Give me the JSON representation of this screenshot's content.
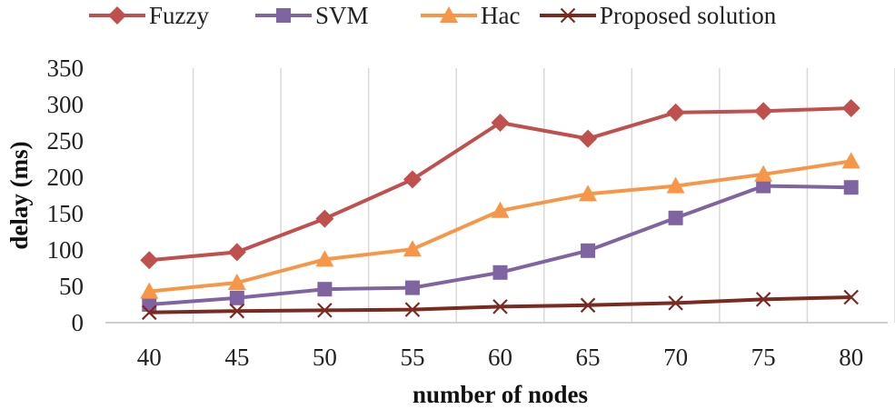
{
  "chart_data": {
    "type": "line",
    "title": "",
    "xlabel": "number of nodes",
    "ylabel": "delay (ms)",
    "categories": [
      "40",
      "45",
      "50",
      "55",
      "60",
      "65",
      "70",
      "75",
      "80"
    ],
    "ylim": [
      0,
      350
    ],
    "yticks": [
      "0",
      "50",
      "100",
      "150",
      "200",
      "250",
      "300",
      "350"
    ],
    "grid": "vertical",
    "legend_position": "top",
    "series": [
      {
        "name": "Fuzzy",
        "color": "#c0504d",
        "marker": "diamond",
        "values": [
          86,
          97,
          143,
          197,
          275,
          253,
          289,
          291,
          295
        ]
      },
      {
        "name": "SVM",
        "color": "#8064a2",
        "marker": "square",
        "values": [
          25,
          34,
          46,
          48,
          69,
          99,
          144,
          188,
          186
        ]
      },
      {
        "name": "Hac",
        "color": "#f79646",
        "marker": "triangle",
        "values": [
          43,
          55,
          87,
          101,
          154,
          177,
          188,
          204,
          222
        ]
      },
      {
        "name": "Proposed solution",
        "color": "#7b2a20",
        "marker": "x",
        "values": [
          14,
          16,
          17,
          18,
          22,
          24,
          27,
          32,
          35
        ]
      }
    ]
  }
}
